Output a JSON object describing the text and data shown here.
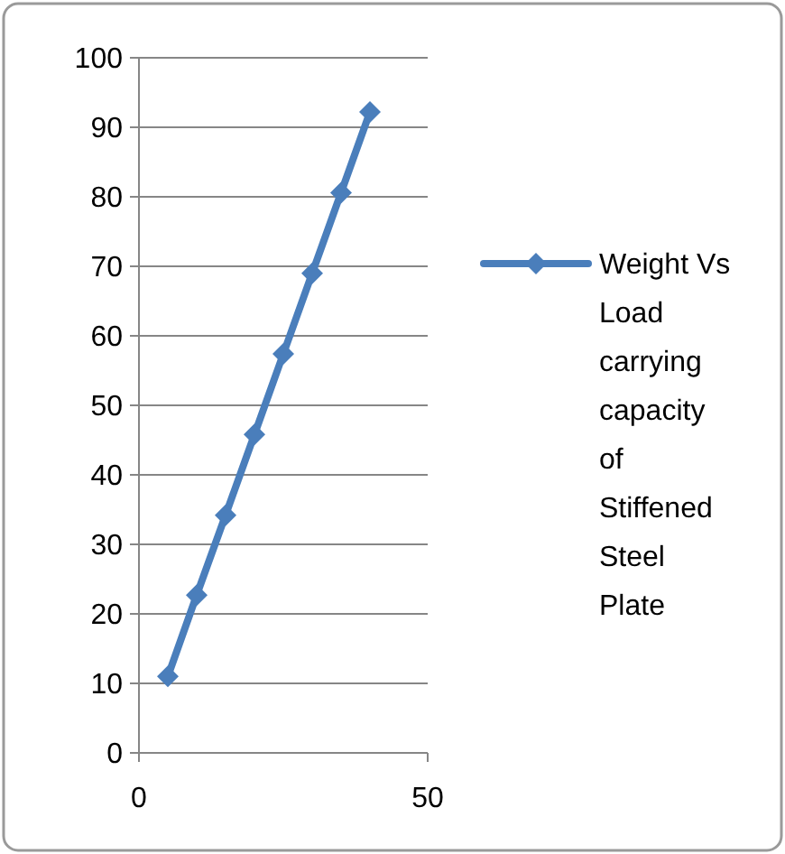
{
  "chart_data": {
    "type": "line",
    "x": [
      5,
      10,
      15,
      20,
      25,
      30,
      35,
      40
    ],
    "series": [
      {
        "name": "Weight Vs Load carrying capacity of Stiffened Steel Plate",
        "color": "#4a7ebb",
        "values": [
          11,
          22.7,
          34.2,
          45.8,
          57.4,
          69,
          80.6,
          92.2
        ]
      }
    ],
    "xlim": [
      0,
      50
    ],
    "xticks": [
      0,
      50
    ],
    "ylim": [
      0,
      100
    ],
    "yticks": [
      0,
      10,
      20,
      30,
      40,
      50,
      60,
      70,
      80,
      90,
      100
    ],
    "grid": "y",
    "legend": "right",
    "marker": "diamond",
    "line_style": "solid"
  }
}
